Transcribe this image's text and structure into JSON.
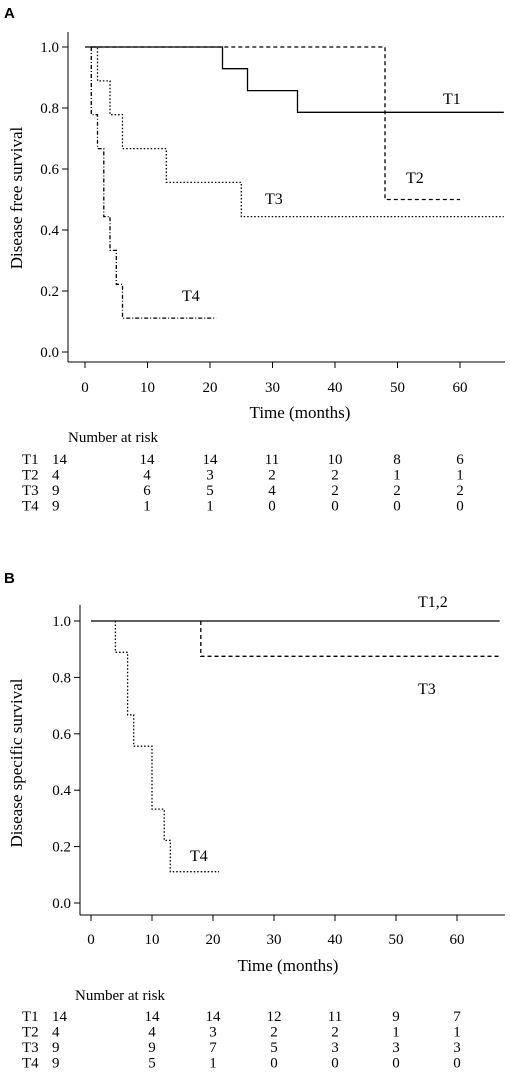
{
  "chart_data": [
    {
      "panel": "A",
      "type": "line",
      "step": true,
      "ylabel": "Disease free survival",
      "xlabel": "Time (months)",
      "xlim": [
        0,
        60
      ],
      "ylim": [
        0,
        1.0
      ],
      "xticks": [
        "0",
        "10",
        "20",
        "30",
        "40",
        "50",
        "60"
      ],
      "yticks": [
        "0.0",
        "0.2",
        "0.4",
        "0.6",
        "0.8",
        "1.0"
      ],
      "grid": false,
      "series": [
        {
          "name": "T1",
          "style": "solid",
          "x": [
            0,
            22,
            22,
            26,
            26,
            34,
            34,
            67
          ],
          "y": [
            1.0,
            1.0,
            0.929,
            0.929,
            0.857,
            0.857,
            0.786,
            0.786
          ]
        },
        {
          "name": "T2",
          "style": "dashed",
          "x": [
            1,
            48,
            48,
            60
          ],
          "y": [
            1.0,
            1.0,
            0.5,
            0.5
          ]
        },
        {
          "name": "T3",
          "style": "dotted",
          "x": [
            1,
            2,
            2,
            4,
            4,
            6,
            6,
            13,
            13,
            25,
            25,
            67
          ],
          "y": [
            1.0,
            1.0,
            0.889,
            0.889,
            0.778,
            0.778,
            0.667,
            0.667,
            0.556,
            0.556,
            0.444,
            0.444
          ]
        },
        {
          "name": "T4",
          "style": "dash-dot",
          "x": [
            1,
            1,
            2,
            2,
            3,
            3,
            4,
            4,
            5,
            5,
            6,
            6,
            21
          ],
          "y": [
            1.0,
            0.778,
            0.778,
            0.667,
            0.667,
            0.444,
            0.444,
            0.333,
            0.333,
            0.222,
            0.222,
            0.111,
            0.111
          ]
        }
      ],
      "risk_table": {
        "title": "Number at risk",
        "rows": [
          {
            "group": "T1",
            "values": [
              "14",
              "14",
              "14",
              "11",
              "10",
              "8",
              "6"
            ]
          },
          {
            "group": "T2",
            "values": [
              "4",
              "4",
              "3",
              "2",
              "2",
              "1",
              "1"
            ]
          },
          {
            "group": "T3",
            "values": [
              "9",
              "6",
              "5",
              "4",
              "2",
              "2",
              "2"
            ]
          },
          {
            "group": "T4",
            "values": [
              "9",
              "1",
              "1",
              "0",
              "0",
              "0",
              "0"
            ]
          }
        ]
      }
    },
    {
      "panel": "B",
      "type": "line",
      "step": true,
      "ylabel": "Disease specific survival",
      "xlabel": "Time (months)",
      "xlim": [
        0,
        60
      ],
      "ylim": [
        0,
        1.0
      ],
      "xticks": [
        "0",
        "10",
        "20",
        "30",
        "40",
        "50",
        "60"
      ],
      "yticks": [
        "0.0",
        "0.2",
        "0.4",
        "0.6",
        "0.8",
        "1.0"
      ],
      "grid": false,
      "series": [
        {
          "name": "T1,2",
          "style": "solid",
          "x": [
            0,
            67
          ],
          "y": [
            1.0,
            1.0
          ]
        },
        {
          "name": "T3",
          "style": "dashed",
          "x": [
            18,
            18,
            67
          ],
          "y": [
            1.0,
            0.875,
            0.875
          ]
        },
        {
          "name": "T4",
          "style": "dotted",
          "x": [
            4,
            4,
            6,
            6,
            7,
            7,
            10,
            10,
            12,
            12,
            13,
            13,
            21
          ],
          "y": [
            1.0,
            0.889,
            0.889,
            0.667,
            0.667,
            0.556,
            0.556,
            0.333,
            0.333,
            0.222,
            0.222,
            0.111,
            0.111
          ]
        }
      ],
      "risk_table": {
        "title": "Number at risk",
        "rows": [
          {
            "group": "T1",
            "values": [
              "14",
              "14",
              "14",
              "12",
              "11",
              "9",
              "7"
            ]
          },
          {
            "group": "T2",
            "values": [
              "4",
              "4",
              "3",
              "2",
              "2",
              "1",
              "1"
            ]
          },
          {
            "group": "T3",
            "values": [
              "9",
              "9",
              "7",
              "5",
              "3",
              "3",
              "3"
            ]
          },
          {
            "group": "T4",
            "values": [
              "9",
              "5",
              "1",
              "0",
              "0",
              "0",
              "0"
            ]
          }
        ]
      }
    }
  ]
}
